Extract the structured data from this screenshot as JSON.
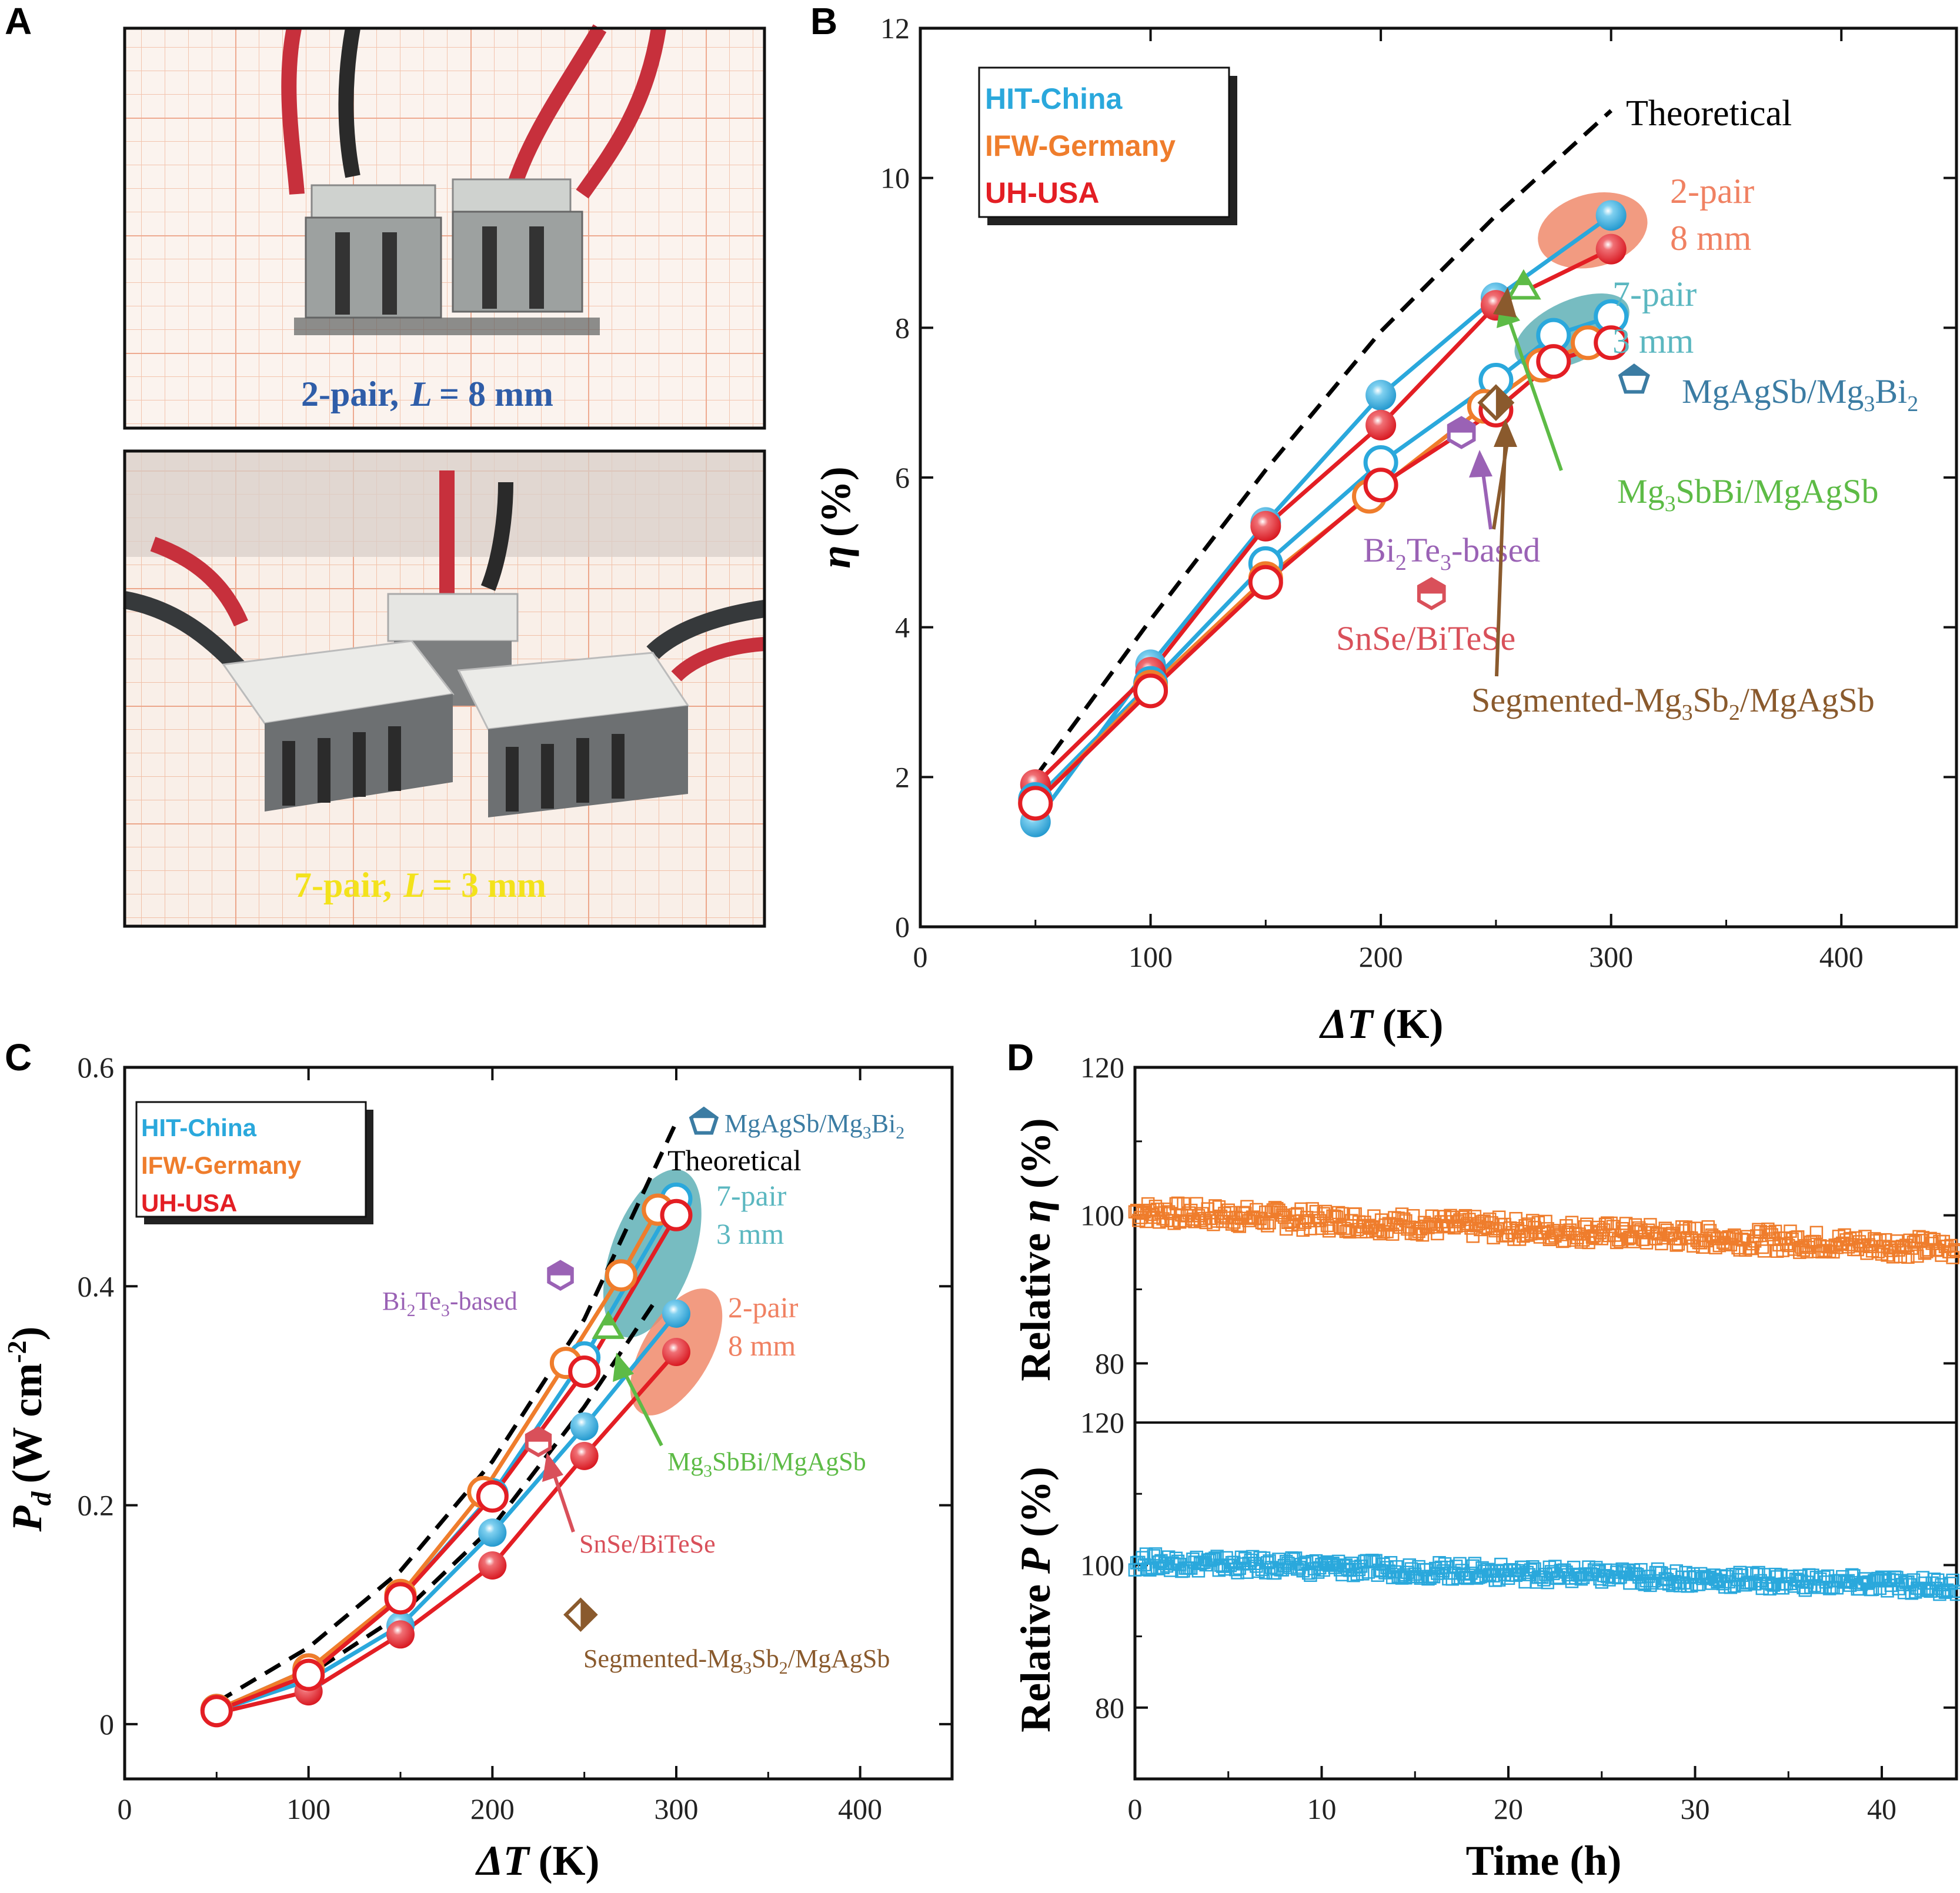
{
  "panels": {
    "A": "A",
    "B": "B",
    "C": "C",
    "D": "D"
  },
  "colors": {
    "hit": "#2aa8dc",
    "ifw": "#ef7d2c",
    "uh": "#e31e24",
    "theory": "#000000",
    "mgag_mg3bi2": "#3b7ca3",
    "mg3sbbi": "#5dbb46",
    "bi2te3": "#9a62b5",
    "snse": "#d9505a",
    "segmented": "#8a5a2d",
    "d_eta": "#ef7d2c",
    "d_p": "#2aa8dc"
  },
  "photos": {
    "top_caption_prefix": "2-pair,",
    "top_caption_var": "L",
    "top_caption_suffix": "= 8 mm",
    "bottom_caption_prefix": "7-pair,",
    "bottom_caption_var": "L",
    "bottom_caption_suffix": "= 3 mm"
  },
  "legend": {
    "hit": "HIT-China",
    "ifw": "IFW-Germany",
    "uh": "UH-USA"
  },
  "annotations_b": {
    "theoretical": "Theoretical",
    "two_pair": "2-pair",
    "two_pair_len": "8 mm",
    "seven_pair": "7-pair",
    "seven_pair_len": "3 mm",
    "mgag_a": "MgAgSb/Mg",
    "mgag_sub1": "3",
    "mgag_b": "Bi",
    "mgag_sub2": "2",
    "mg3_a": "Mg",
    "mg3_sub": "3",
    "mg3_b": "SbBi/MgAgSb",
    "bi_a": "Bi",
    "bi_sub1": "2",
    "bi_b": "Te",
    "bi_sub2": "3",
    "bi_c": "-based",
    "snse": "SnSe/BiTeSe",
    "seg_a": "Segmented-Mg",
    "seg_sub1": "3",
    "seg_b": "Sb",
    "seg_sub2": "2",
    "seg_c": "/MgAgSb"
  },
  "axes": {
    "b_ylabel": "η (%)",
    "b_ylabel_sym": "η",
    "b_ylabel_unit": "(%)",
    "b_xlabel_sym": "ΔT",
    "b_xlabel_unit": "(K)",
    "c_ylabel_sym": "P",
    "c_ylabel_sub": "d",
    "c_ylabel_unit": "(W cm",
    "c_ylabel_exp": "-2",
    "c_ylabel_close": ")",
    "c_xlabel_sym": "ΔT",
    "c_xlabel_unit": "(K)",
    "d_top_ylabel_a": "Relative ",
    "d_top_ylabel_sym": "η",
    "d_top_ylabel_b": " (%)",
    "d_bot_ylabel_a": "Relative ",
    "d_bot_ylabel_sym": "P",
    "d_bot_ylabel_b": " (%)",
    "d_xlabel": "Time (h)"
  },
  "chart_data": [
    {
      "panel": "B",
      "type": "line",
      "title": "",
      "xlabel": "ΔT (K)",
      "ylabel": "η (%)",
      "xlim": [
        0,
        450
      ],
      "ylim": [
        0,
        12
      ],
      "xticks": [
        0,
        100,
        200,
        300,
        400
      ],
      "yticks": [
        0,
        2,
        4,
        6,
        8,
        10,
        12
      ],
      "series": [
        {
          "name": "HIT-China 2-pair 8 mm",
          "group": "hit",
          "marker": "filled",
          "x": [
            50,
            100,
            150,
            200,
            250,
            300
          ],
          "y": [
            1.4,
            3.5,
            5.4,
            7.1,
            8.4,
            9.5
          ]
        },
        {
          "name": "UH-USA 2-pair 8 mm",
          "group": "uh",
          "marker": "filled",
          "x": [
            50,
            100,
            150,
            200,
            250,
            300
          ],
          "y": [
            1.9,
            3.4,
            5.35,
            6.7,
            8.3,
            9.05
          ]
        },
        {
          "name": "HIT-China 7-pair 3 mm",
          "group": "hit",
          "marker": "open",
          "x": [
            50,
            100,
            150,
            200,
            250,
            275,
            300
          ],
          "y": [
            1.7,
            3.25,
            4.85,
            6.2,
            7.3,
            7.9,
            8.15
          ]
        },
        {
          "name": "IFW-Germany 7-pair 3 mm",
          "group": "ifw",
          "marker": "open",
          "x": [
            50,
            100,
            150,
            195,
            245,
            270,
            290
          ],
          "y": [
            1.65,
            3.2,
            4.65,
            5.75,
            6.95,
            7.5,
            7.8
          ]
        },
        {
          "name": "UH-USA 7-pair 3 mm",
          "group": "uh",
          "marker": "open",
          "x": [
            50,
            100,
            150,
            200,
            250,
            275,
            300
          ],
          "y": [
            1.65,
            3.15,
            4.6,
            5.9,
            6.9,
            7.55,
            7.8
          ]
        },
        {
          "name": "Theoretical",
          "group": "theory",
          "marker": "none",
          "x": [
            50,
            100,
            150,
            200,
            250,
            300
          ],
          "y": [
            2.0,
            4.1,
            6.1,
            7.95,
            9.5,
            10.9
          ]
        }
      ],
      "reference_points": [
        {
          "name": "MgAgSb/Mg3Bi2",
          "x": 310,
          "y": 7.3,
          "marker": "pentagon"
        },
        {
          "name": "Mg3SbBi/MgAgSb",
          "x": 262,
          "y": 8.55,
          "marker": "triangle"
        },
        {
          "name": "Bi2Te3-based",
          "x": 235,
          "y": 6.6,
          "marker": "hexagon"
        },
        {
          "name": "SnSe/BiTeSe",
          "x": 222,
          "y": 4.45,
          "marker": "hexagon"
        },
        {
          "name": "Segmented-Mg3Sb2/MgAgSb",
          "x": 250,
          "y": 7.0,
          "marker": "diamond"
        }
      ]
    },
    {
      "panel": "C",
      "type": "line",
      "title": "",
      "xlabel": "ΔT (K)",
      "ylabel": "Pd (W cm-2)",
      "xlim": [
        0,
        450
      ],
      "ylim": [
        -0.05,
        0.6
      ],
      "xticks": [
        0,
        100,
        200,
        300,
        400
      ],
      "yticks": [
        0,
        0.2,
        0.4,
        0.6
      ],
      "series": [
        {
          "name": "HIT-China 2-pair 8 mm",
          "group": "hit",
          "marker": "filled",
          "x": [
            50,
            100,
            150,
            200,
            250,
            300
          ],
          "y": [
            0.012,
            0.04,
            0.09,
            0.175,
            0.272,
            0.375
          ]
        },
        {
          "name": "UH-USA 2-pair 8 mm",
          "group": "uh",
          "marker": "filled",
          "x": [
            50,
            100,
            150,
            200,
            250,
            300
          ],
          "y": [
            0.01,
            0.03,
            0.082,
            0.145,
            0.245,
            0.34
          ]
        },
        {
          "name": "HIT-China 7-pair 3 mm",
          "group": "hit",
          "marker": "open",
          "x": [
            50,
            100,
            150,
            200,
            250,
            300
          ],
          "y": [
            0.013,
            0.05,
            0.115,
            0.21,
            0.335,
            0.48
          ]
        },
        {
          "name": "IFW-Germany 7-pair 3 mm",
          "group": "ifw",
          "marker": "open",
          "x": [
            50,
            100,
            150,
            195,
            240,
            270,
            290
          ],
          "y": [
            0.013,
            0.05,
            0.118,
            0.212,
            0.33,
            0.41,
            0.47
          ]
        },
        {
          "name": "UH-USA 7-pair 3 mm",
          "group": "uh",
          "marker": "open",
          "x": [
            50,
            100,
            150,
            200,
            250,
            300
          ],
          "y": [
            0.012,
            0.045,
            0.115,
            0.208,
            0.322,
            0.465
          ]
        },
        {
          "name": "Theoretical (7-pair)",
          "group": "theory",
          "marker": "none",
          "x": [
            50,
            100,
            150,
            200,
            250,
            300
          ],
          "y": [
            0.02,
            0.07,
            0.14,
            0.24,
            0.37,
            0.55
          ]
        },
        {
          "name": "Theoretical (2-pair)",
          "group": "theory",
          "marker": "none",
          "x": [
            50,
            100,
            150,
            200,
            250,
            290
          ],
          "y": [
            0.01,
            0.045,
            0.1,
            0.18,
            0.29,
            0.39
          ]
        }
      ],
      "reference_points": [
        {
          "name": "MgAgSb/Mg3Bi2",
          "x": 315,
          "y": 0.55,
          "marker": "pentagon"
        },
        {
          "name": "Mg3SbBi/MgAgSb",
          "x": 263,
          "y": 0.363,
          "marker": "triangle"
        },
        {
          "name": "Bi2Te3-based",
          "x": 237,
          "y": 0.41,
          "marker": "hexagon"
        },
        {
          "name": "SnSe/BiTeSe",
          "x": 225,
          "y": 0.258,
          "marker": "hexagon"
        },
        {
          "name": "Segmented-Mg3Sb2/MgAgSb",
          "x": 248,
          "y": 0.1,
          "marker": "diamond"
        }
      ]
    },
    {
      "panel": "D",
      "type": "scatter",
      "title": "",
      "xlabel": "Time (h)",
      "xlim": [
        0,
        44
      ],
      "xticks": [
        0,
        10,
        20,
        30,
        40
      ],
      "subplots": [
        {
          "ylabel": "Relative η (%)",
          "ylim": [
            72,
            120
          ],
          "yticks": [
            80,
            100,
            120
          ],
          "series": [
            {
              "name": "Relative η",
              "start": 100.5,
              "end": 95.5,
              "noise": 1.5
            }
          ]
        },
        {
          "ylabel": "Relative P (%)",
          "ylim": [
            70,
            120
          ],
          "yticks": [
            80,
            100,
            120
          ],
          "series": [
            {
              "name": "Relative P",
              "start": 100.5,
              "end": 97.0,
              "noise": 1.2
            }
          ]
        }
      ]
    }
  ]
}
